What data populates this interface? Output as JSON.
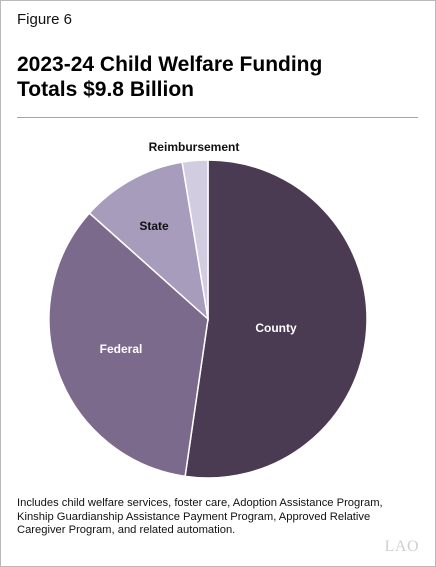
{
  "figure_label": "Figure 6",
  "title_line1": "2023-24 Child Welfare Funding",
  "title_line2": "Totals $9.8 Billion",
  "note": "Includes child welfare services, foster care, Adoption Assistance Program, Kinship Guardianship Assistance Payment Program, Approved Relative Caregiver Program, and related automation.",
  "logo_text": "LAO",
  "chart_data": {
    "type": "pie",
    "title": "2023-24 Child Welfare Funding Totals $9.8 Billion",
    "slices": [
      {
        "label": "County",
        "value": 52.3,
        "color": "#4a3a52",
        "text_color": "#ffffff"
      },
      {
        "label": "Federal",
        "value": 34.3,
        "color": "#7b6a8c",
        "text_color": "#ffffff"
      },
      {
        "label": "State",
        "value": 10.8,
        "color": "#a89cbd",
        "text_color": "#111111"
      },
      {
        "label": "Reimbursement",
        "value": 2.6,
        "color": "#d2cce0",
        "text_color": "#111111"
      }
    ],
    "legend": "none"
  }
}
